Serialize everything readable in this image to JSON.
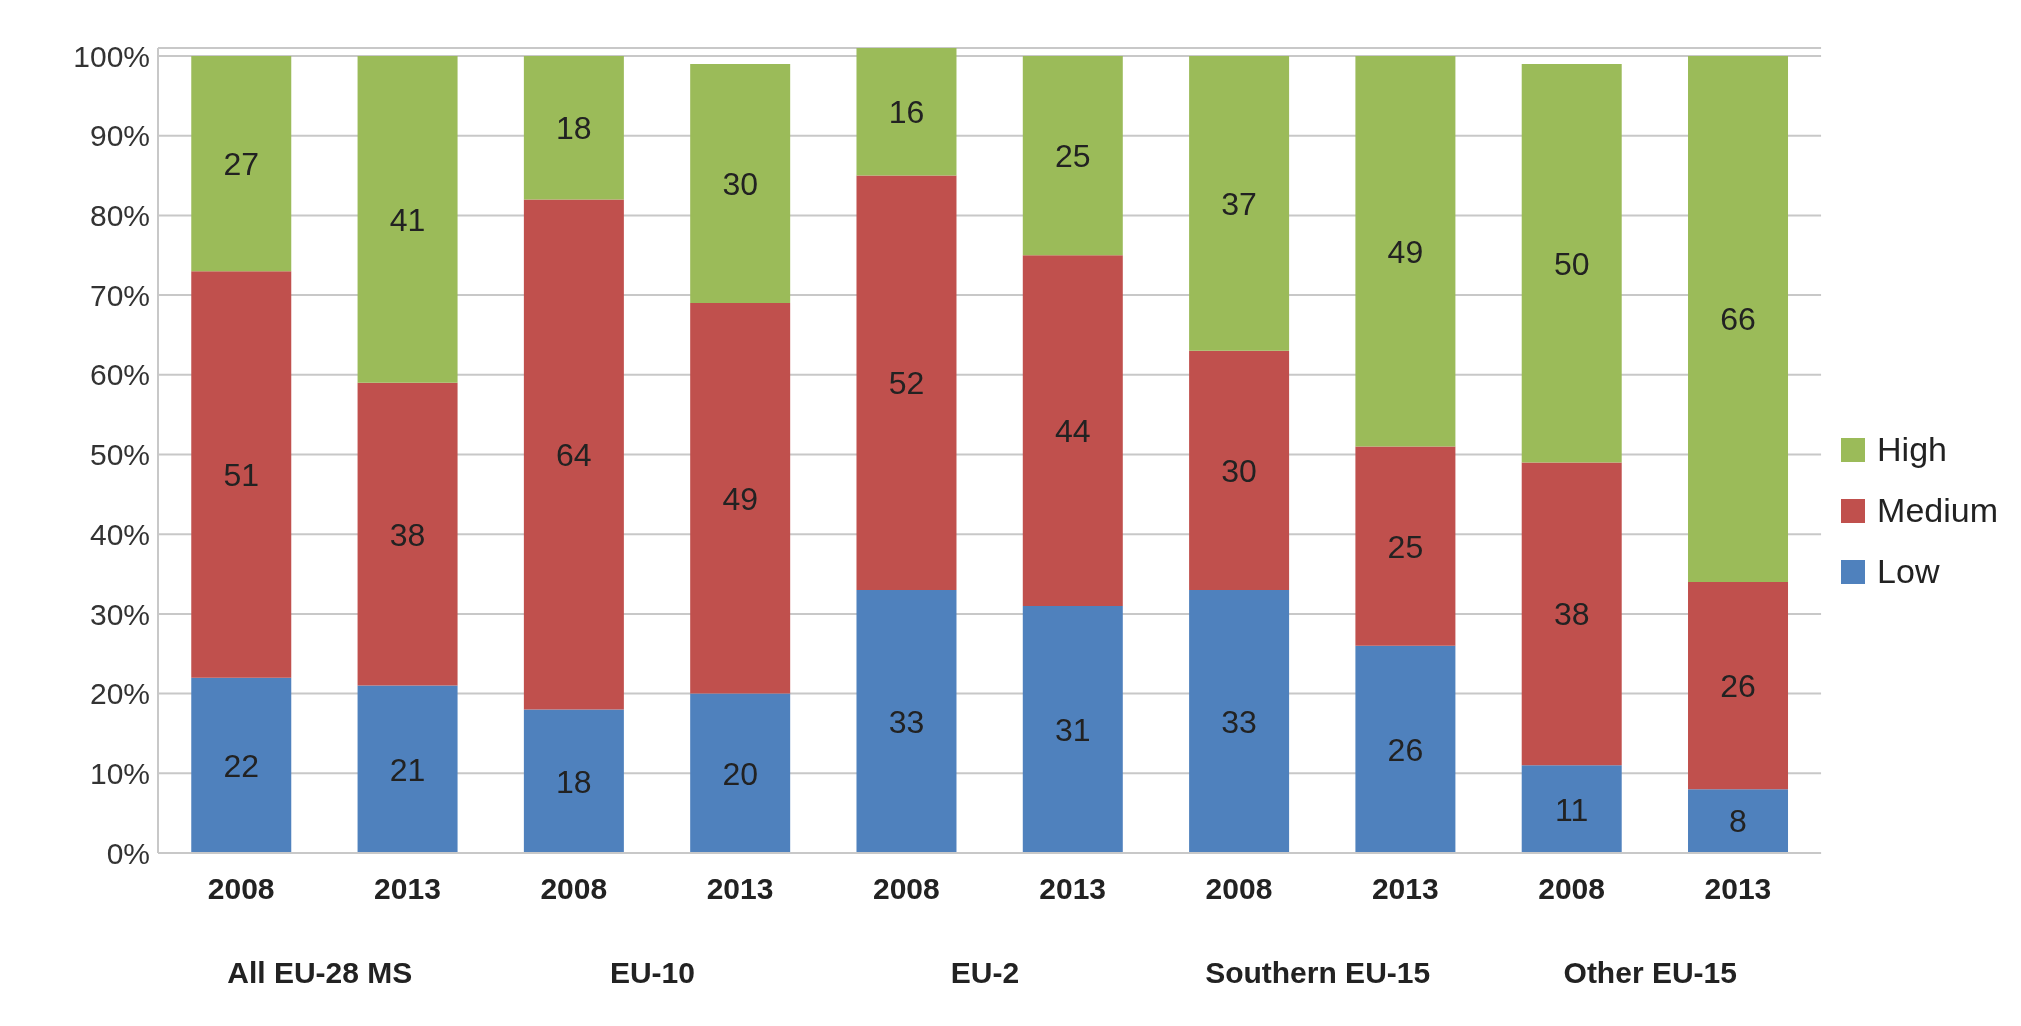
{
  "chart_data": {
    "type": "bar",
    "stacked": true,
    "categories": [
      "2008",
      "2013",
      "2008",
      "2013",
      "2008",
      "2013",
      "2008",
      "2013",
      "2008",
      "2013"
    ],
    "annotations": [
      "All EU-28 MS",
      "EU-10",
      "EU-2",
      "Southern EU-15",
      "Other EU-15"
    ],
    "series": [
      {
        "name": "Low",
        "color": "#4f81bd",
        "values": [
          22,
          21,
          18,
          20,
          33,
          31,
          33,
          26,
          11,
          8
        ]
      },
      {
        "name": "Medium",
        "color": "#c0504d",
        "values": [
          51,
          38,
          64,
          49,
          52,
          44,
          30,
          25,
          38,
          26
        ]
      },
      {
        "name": "High",
        "color": "#9bbb59",
        "values": [
          27,
          41,
          18,
          30,
          16,
          25,
          37,
          49,
          50,
          66
        ]
      }
    ],
    "ylim": [
      0,
      101
    ],
    "yticks": [
      {
        "value": 0,
        "label": "0%"
      },
      {
        "value": 10,
        "label": "10%"
      },
      {
        "value": 20,
        "label": "20%"
      },
      {
        "value": 30,
        "label": "30%"
      },
      {
        "value": 40,
        "label": "40%"
      },
      {
        "value": 50,
        "label": "50%"
      },
      {
        "value": 60,
        "label": "60%"
      },
      {
        "value": 70,
        "label": "70%"
      },
      {
        "value": 80,
        "label": "80%"
      },
      {
        "value": 90,
        "label": "90%"
      },
      {
        "value": 100,
        "label": "100%"
      }
    ],
    "grid": "y",
    "legend": "right",
    "data_labels": true
  }
}
